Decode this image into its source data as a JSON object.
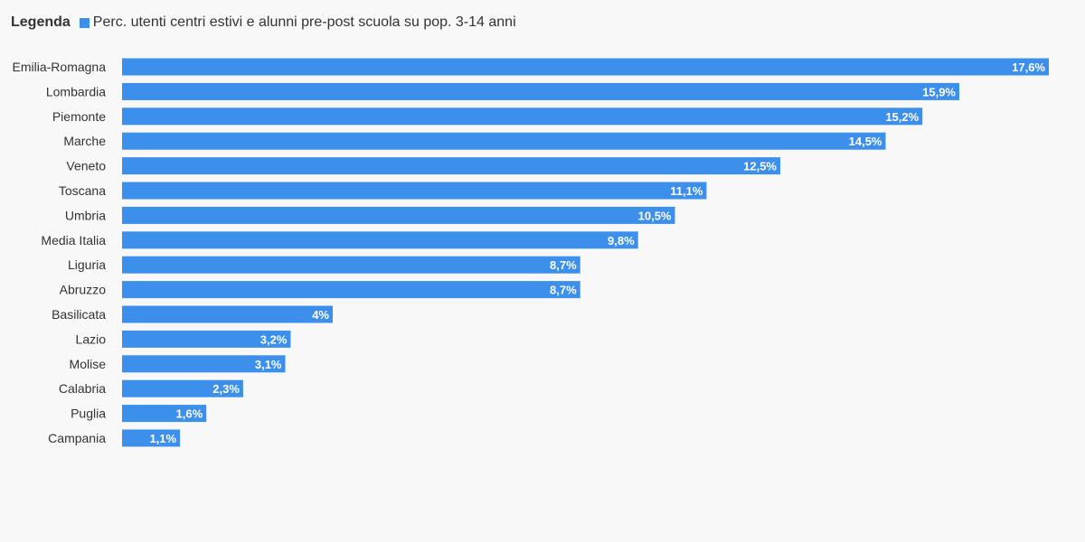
{
  "legend": {
    "title": "Legenda",
    "series_label": "Perc. utenti centri estivi e alunni pre-post scuola su pop. 3-14 anni"
  },
  "colors": {
    "bar": "#3d8fec",
    "background": "#f8f8f8",
    "text": "#333333",
    "value_text": "#ffffff"
  },
  "chart_data": {
    "type": "bar",
    "orientation": "horizontal",
    "categories": [
      "Emilia-Romagna",
      "Lombardia",
      "Piemonte",
      "Marche",
      "Veneto",
      "Toscana",
      "Umbria",
      "Media Italia",
      "Liguria",
      "Abruzzo",
      "Basilicata",
      "Lazio",
      "Molise",
      "Calabria",
      "Puglia",
      "Campania"
    ],
    "series": [
      {
        "name": "Perc. utenti centri estivi e alunni pre-post scuola su pop. 3-14 anni",
        "values": [
          17.6,
          15.9,
          15.2,
          14.5,
          12.5,
          11.1,
          10.5,
          9.8,
          8.7,
          8.7,
          4,
          3.2,
          3.1,
          2.3,
          1.6,
          1.1
        ]
      }
    ],
    "value_labels": [
      "17,6%",
      "15,9%",
      "15,2%",
      "14,5%",
      "12,5%",
      "11,1%",
      "10,5%",
      "9,8%",
      "8,7%",
      "8,7%",
      "4%",
      "3,2%",
      "3,1%",
      "2,3%",
      "1,6%",
      "1,1%"
    ],
    "xlim": [
      0,
      17.6
    ],
    "grid": false,
    "legend_position": "top-left"
  }
}
